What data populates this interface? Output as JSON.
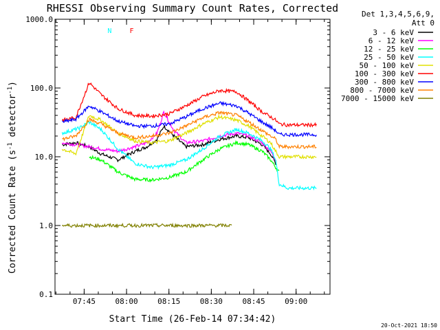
{
  "chart_data": {
    "type": "line",
    "title": "RHESSI Observing Summary Count Rates, Corrected",
    "xlabel": "Start Time (26-Feb-14 07:34:42)",
    "ylabel_prefix": "Corrected Count Rate (s",
    "ylabel_sup": "-1",
    "ylabel_mid": " detector",
    "ylabel_sup2": "-1",
    "ylabel_suffix": ")",
    "yscale": "log",
    "ylim": [
      0.1,
      1000
    ],
    "xlim": [
      7.578,
      9.2
    ],
    "y_ticks": [
      {
        "value": 0.1,
        "label": "0.1"
      },
      {
        "value": 1,
        "label": "1.0"
      },
      {
        "value": 10,
        "label": "10.0"
      },
      {
        "value": 100,
        "label": "100.0"
      },
      {
        "value": 1000,
        "label": "1000.0"
      }
    ],
    "x_ticks": [
      {
        "value": 7.75,
        "label": "07:45"
      },
      {
        "value": 8.0,
        "label": "08:00"
      },
      {
        "value": 8.25,
        "label": "08:15"
      },
      {
        "value": 8.5,
        "label": "08:30"
      },
      {
        "value": 8.75,
        "label": "08:45"
      },
      {
        "value": 9.0,
        "label": "09:00"
      }
    ],
    "legend_header": [
      "Det 1,3,4,5,6,9,",
      "Att 0"
    ],
    "legend_position": "right",
    "series": [
      {
        "name": "3 - 6 keV",
        "color": "#000000",
        "x": [
          7.62,
          7.7,
          7.78,
          7.85,
          7.95,
          8.05,
          8.12,
          8.18,
          8.22,
          8.28,
          8.35,
          8.45,
          8.55,
          8.65,
          8.72,
          8.8,
          8.85,
          8.88
        ],
        "y": [
          15,
          16,
          14,
          11,
          9,
          12,
          14,
          18,
          28,
          20,
          14,
          15,
          18,
          20,
          19,
          15,
          11,
          8
        ]
      },
      {
        "name": "6 - 12 keV",
        "color": "#ff00ff",
        "x": [
          7.62,
          7.7,
          7.78,
          7.85,
          7.95,
          8.05,
          8.12,
          8.18,
          8.22,
          8.28,
          8.35,
          8.45,
          8.55,
          8.65,
          8.72,
          8.8,
          8.85,
          8.88
        ],
        "y": [
          16,
          15,
          14,
          13,
          12,
          14,
          16,
          22,
          45,
          24,
          16,
          17,
          20,
          22,
          20,
          16,
          12,
          9
        ]
      },
      {
        "name": "12 - 25 keV",
        "color": "#00ff00",
        "x": [
          7.78,
          7.85,
          7.95,
          8.05,
          8.15,
          8.25,
          8.35,
          8.45,
          8.55,
          8.65,
          8.72,
          8.8,
          8.85,
          8.88,
          8.9
        ],
        "y": [
          10,
          9,
          6,
          4.7,
          4.6,
          5,
          6,
          9,
          13,
          16,
          15,
          12,
          9,
          7,
          6
        ]
      },
      {
        "name": "25 - 50 keV",
        "color": "#00ffff",
        "x": [
          7.62,
          7.72,
          7.78,
          7.85,
          7.95,
          8.05,
          8.15,
          8.25,
          8.35,
          8.45,
          8.55,
          8.65,
          8.72,
          8.8,
          8.85,
          8.88,
          8.9,
          8.95,
          9.05,
          9.12
        ],
        "y": [
          22,
          26,
          32,
          25,
          13,
          8,
          7,
          7.5,
          9,
          13,
          20,
          25,
          22,
          17,
          13,
          9,
          4,
          3.5,
          3.5,
          3.5
        ]
      },
      {
        "name": "50 - 100 keV",
        "color": "#e0e000",
        "x": [
          7.62,
          7.7,
          7.78,
          7.85,
          7.95,
          8.05,
          8.15,
          8.25,
          8.35,
          8.45,
          8.55,
          8.65,
          8.72,
          8.8,
          8.85,
          8.88,
          8.9,
          8.95,
          9.05,
          9.12
        ],
        "y": [
          13,
          11,
          40,
          34,
          22,
          17,
          16,
          17,
          22,
          30,
          38,
          34,
          28,
          20,
          16,
          12,
          10,
          10,
          10,
          10
        ]
      },
      {
        "name": "100 - 300 keV",
        "color": "#ff0000",
        "x": [
          7.62,
          7.7,
          7.78,
          7.85,
          7.95,
          8.05,
          8.15,
          8.25,
          8.35,
          8.45,
          8.55,
          8.65,
          8.72,
          8.8,
          8.85,
          8.88,
          8.9,
          8.95,
          9.05,
          9.12
        ],
        "y": [
          34,
          37,
          120,
          80,
          50,
          40,
          39,
          42,
          55,
          75,
          92,
          88,
          65,
          45,
          38,
          34,
          30,
          29,
          29,
          29
        ]
      },
      {
        "name": "300 - 800 keV",
        "color": "#0000ff",
        "x": [
          7.62,
          7.7,
          7.78,
          7.85,
          7.95,
          8.05,
          8.15,
          8.25,
          8.35,
          8.45,
          8.55,
          8.65,
          8.72,
          8.8,
          8.85,
          8.88,
          8.9,
          8.95,
          9.05,
          9.12
        ],
        "y": [
          32,
          35,
          55,
          45,
          33,
          28,
          28,
          30,
          38,
          50,
          60,
          55,
          43,
          32,
          27,
          24,
          21,
          21,
          21,
          21
        ]
      },
      {
        "name": "800 - 7000 keV",
        "color": "#ff8000",
        "x": [
          7.62,
          7.7,
          7.78,
          7.85,
          7.95,
          8.05,
          8.15,
          8.25,
          8.35,
          8.45,
          8.55,
          8.65,
          8.72,
          8.8,
          8.85,
          8.88,
          8.9,
          8.95,
          9.05,
          9.12
        ],
        "y": [
          18,
          20,
          35,
          30,
          22,
          19,
          20,
          22,
          28,
          37,
          44,
          40,
          32,
          24,
          20,
          18,
          14,
          14,
          14,
          14
        ]
      },
      {
        "name": "7000 - 15000 keV",
        "color": "#808000",
        "x": [
          7.62,
          7.75,
          7.82,
          7.85,
          7.95,
          8.05,
          8.15,
          8.25,
          8.35,
          8.45,
          8.55,
          8.62
        ],
        "y": [
          1.0,
          1.0,
          1.0,
          1.0,
          1.0,
          1.0,
          1.0,
          1.0,
          1.0,
          1.0,
          1.0,
          1.0
        ]
      }
    ],
    "annotations": [
      {
        "text": "N",
        "x": 7.9,
        "color": "#00ffff"
      },
      {
        "text": "F",
        "x": 8.03,
        "color": "#ff0000"
      }
    ],
    "footer_date": "20-Oct-2021 18:50"
  }
}
